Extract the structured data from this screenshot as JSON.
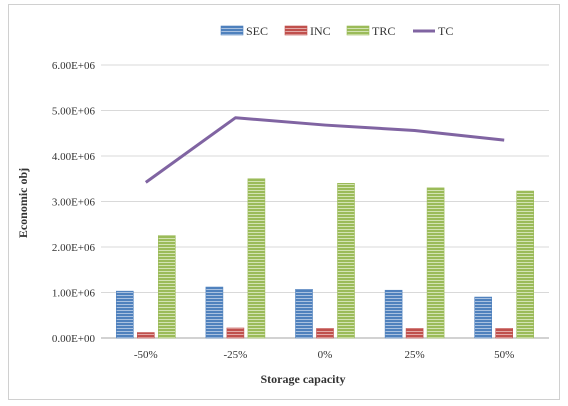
{
  "chart_data": {
    "type": "bar",
    "title": "",
    "xlabel": "Storage capacity",
    "ylabel": "Economic obj",
    "categories": [
      "-50%",
      "-25%",
      "0%",
      "25%",
      "50%"
    ],
    "ylim": [
      0,
      6000000
    ],
    "yticks": [
      0,
      1000000,
      2000000,
      3000000,
      4000000,
      5000000,
      6000000
    ],
    "ytick_labels": [
      "0.00E+00",
      "1.00E+06",
      "2.00E+06",
      "3.00E+06",
      "4.00E+06",
      "5.00E+06",
      "6.00E+06"
    ],
    "grid": true,
    "legend_position": "top-center",
    "series": [
      {
        "name": "SEC",
        "kind": "bar",
        "color": "#4f81bd",
        "values": [
          1030000,
          1120000,
          1070000,
          1050000,
          900000
        ]
      },
      {
        "name": "INC",
        "kind": "bar",
        "color": "#c0504d",
        "values": [
          120000,
          220000,
          210000,
          210000,
          210000
        ]
      },
      {
        "name": "TRC",
        "kind": "bar",
        "color": "#9bbb59",
        "values": [
          2250000,
          3500000,
          3400000,
          3300000,
          3230000
        ]
      },
      {
        "name": "TC",
        "kind": "line",
        "color": "#8064a2",
        "values": [
          3420000,
          4840000,
          4680000,
          4560000,
          4350000
        ]
      }
    ]
  }
}
